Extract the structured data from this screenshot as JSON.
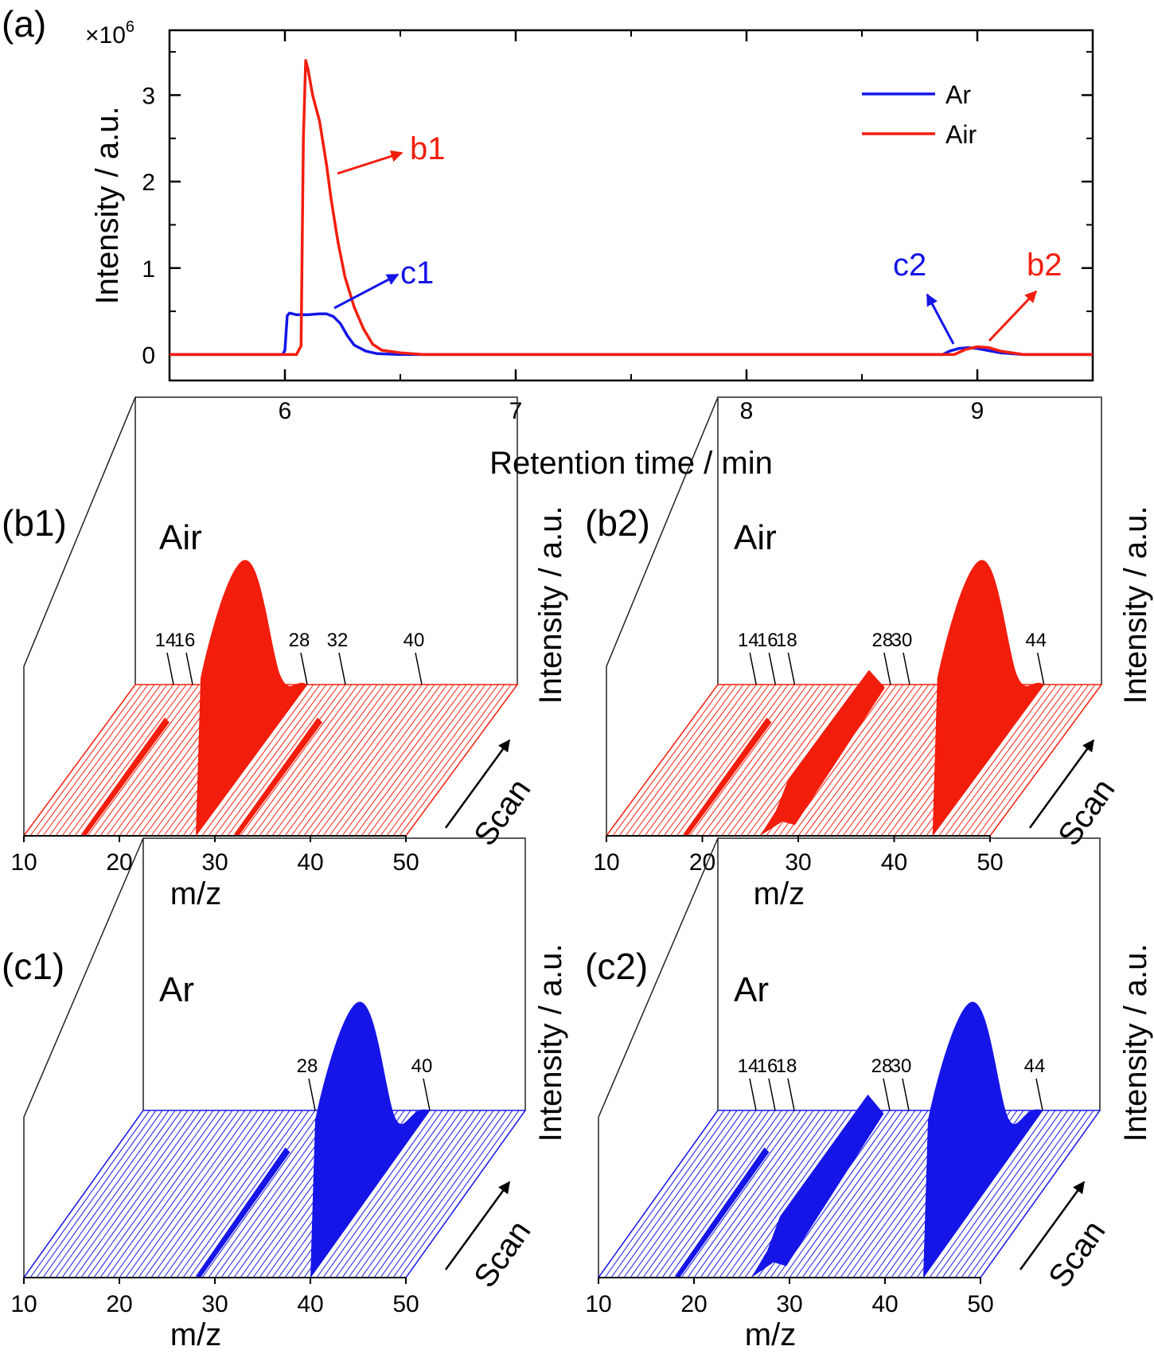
{
  "colors": {
    "ar": "#1515e8",
    "air": "#f31d0c",
    "axis": "#000000"
  },
  "chart_data": [
    {
      "id": "a",
      "type": "line",
      "panel_label": "(a)",
      "xlabel": "Retention time / min",
      "ylabel": "Intensity / a.u.",
      "exponent_label": "×10",
      "exponent_power": "6",
      "xlim": [
        5.5,
        9.5
      ],
      "ylim": [
        -0.3,
        3.75
      ],
      "xticks": [
        6,
        7,
        8,
        9
      ],
      "yticks": [
        0,
        1,
        2,
        3
      ],
      "legend": {
        "position": "top-right",
        "entries": [
          "Ar",
          "Air"
        ]
      },
      "series": [
        {
          "name": "Ar",
          "color": "#1515e8",
          "x": [
            5.5,
            5.99,
            6.0,
            6.01,
            6.02,
            6.05,
            6.1,
            6.15,
            6.18,
            6.21,
            6.24,
            6.27,
            6.3,
            6.35,
            6.4,
            6.5,
            8.85,
            8.88,
            8.92,
            8.96,
            9.0,
            9.04,
            9.1,
            9.2,
            9.5
          ],
          "y": [
            0,
            0,
            0.05,
            0.45,
            0.48,
            0.46,
            0.46,
            0.47,
            0.47,
            0.44,
            0.36,
            0.22,
            0.11,
            0.04,
            0.01,
            0,
            0,
            0.04,
            0.07,
            0.08,
            0.07,
            0.05,
            0.02,
            0,
            0
          ]
        },
        {
          "name": "Air",
          "color": "#f31d0c",
          "x": [
            5.5,
            6.05,
            6.07,
            6.08,
            6.09,
            6.1,
            6.12,
            6.15,
            6.18,
            6.2,
            6.23,
            6.26,
            6.3,
            6.34,
            6.38,
            6.42,
            6.5,
            6.6,
            8.9,
            8.95,
            9.0,
            9.05,
            9.1,
            9.2,
            9.5
          ],
          "y": [
            0,
            0,
            0.1,
            2.5,
            3.4,
            3.3,
            3.0,
            2.7,
            2.2,
            1.8,
            1.3,
            0.9,
            0.55,
            0.3,
            0.12,
            0.05,
            0.02,
            0,
            0,
            0.06,
            0.09,
            0.08,
            0.04,
            0,
            0
          ]
        }
      ],
      "annotations": [
        {
          "text": "b1",
          "color": "#f31d0c"
        },
        {
          "text": "c1",
          "color": "#1515e8"
        },
        {
          "text": "c2",
          "color": "#1515e8"
        },
        {
          "text": "b2",
          "color": "#f31d0c"
        }
      ]
    },
    {
      "id": "b1",
      "type": "area",
      "panel_label": "(b1)",
      "gas": "Air",
      "color": "#f31d0c",
      "xlabel": "m/z",
      "ylabel": "Intensity / a.u.",
      "depth_label": "Scan",
      "xlim": [
        10,
        50
      ],
      "xticks": [
        10,
        20,
        30,
        40,
        50
      ],
      "peak_labels": [
        14,
        16,
        28,
        32,
        40
      ],
      "peaks": [
        {
          "mz": 14,
          "height": 0.0,
          "profile": "ridge"
        },
        {
          "mz": 16,
          "height": 0.02,
          "profile": "ridge"
        },
        {
          "mz": 28,
          "height": 1.0,
          "profile": "hump"
        },
        {
          "mz": 32,
          "height": 0.02,
          "profile": "ridge"
        },
        {
          "mz": 40,
          "height": 0.0,
          "profile": "ridge"
        }
      ]
    },
    {
      "id": "b2",
      "type": "area",
      "panel_label": "(b2)",
      "gas": "Air",
      "color": "#f31d0c",
      "xlabel": "m/z",
      "ylabel": "Intensity / a.u.",
      "depth_label": "Scan",
      "xlim": [
        10,
        50
      ],
      "xticks": [
        10,
        20,
        30,
        40,
        50
      ],
      "peak_labels": [
        14,
        16,
        18,
        28,
        30,
        44
      ],
      "peaks": [
        {
          "mz": 14,
          "height": 0.0,
          "profile": "ridge"
        },
        {
          "mz": 16,
          "height": 0.0,
          "profile": "ridge"
        },
        {
          "mz": 18,
          "height": 0.01,
          "profile": "ridge"
        },
        {
          "mz": 28,
          "height": 0.28,
          "profile": "wedge"
        },
        {
          "mz": 30,
          "height": 0.0,
          "profile": "ridge"
        },
        {
          "mz": 44,
          "height": 1.0,
          "profile": "hump"
        }
      ]
    },
    {
      "id": "c1",
      "type": "area",
      "panel_label": "(c1)",
      "gas": "Ar",
      "color": "#1515e8",
      "xlabel": "m/z",
      "ylabel": "Intensity / a.u.",
      "depth_label": "Scan",
      "xlim": [
        10,
        50
      ],
      "xticks": [
        10,
        20,
        30,
        40,
        50
      ],
      "peak_labels": [
        28,
        40
      ],
      "peaks": [
        {
          "mz": 28,
          "height": 0.01,
          "profile": "ridge"
        },
        {
          "mz": 40,
          "height": 1.0,
          "profile": "hump"
        }
      ]
    },
    {
      "id": "c2",
      "type": "area",
      "panel_label": "(c2)",
      "gas": "Ar",
      "color": "#1515e8",
      "xlabel": "m/z",
      "ylabel": "Intensity / a.u.",
      "depth_label": "Scan",
      "xlim": [
        10,
        50
      ],
      "xticks": [
        10,
        20,
        30,
        40,
        50
      ],
      "peak_labels": [
        14,
        16,
        18,
        28,
        30,
        44
      ],
      "peaks": [
        {
          "mz": 14,
          "height": 0.0,
          "profile": "ridge"
        },
        {
          "mz": 16,
          "height": 0.0,
          "profile": "ridge"
        },
        {
          "mz": 18,
          "height": 0.01,
          "profile": "ridge"
        },
        {
          "mz": 28,
          "height": 0.3,
          "profile": "wedge"
        },
        {
          "mz": 30,
          "height": 0.0,
          "profile": "ridge"
        },
        {
          "mz": 44,
          "height": 1.0,
          "profile": "hump"
        }
      ]
    }
  ]
}
